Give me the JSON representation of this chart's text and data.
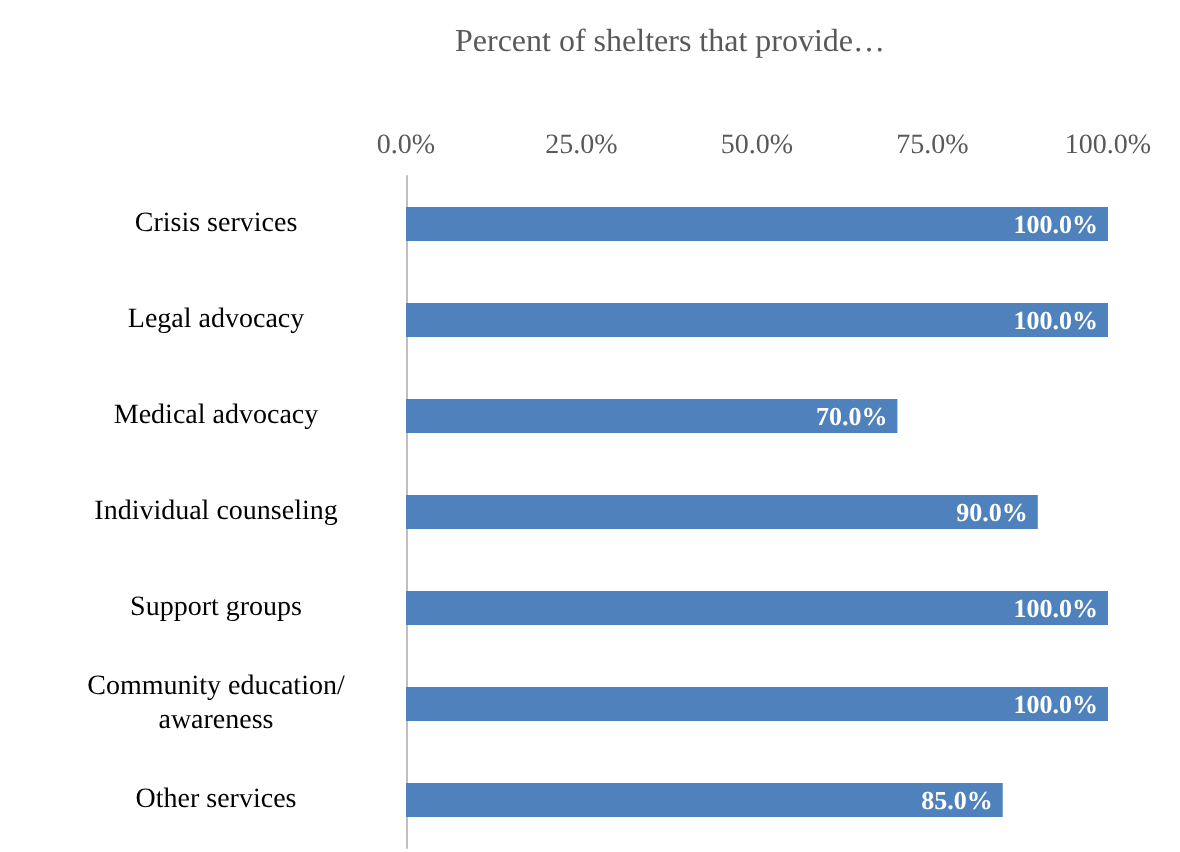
{
  "chart_data": {
    "type": "bar",
    "orientation": "horizontal",
    "title": "Percent of shelters that provide…",
    "categories": [
      "Crisis services",
      "Legal advocacy",
      "Medical advocacy",
      "Individual counseling",
      "Support groups",
      "Community education/awareness",
      "Other services"
    ],
    "values": [
      100,
      100,
      70,
      90,
      100,
      100,
      85
    ],
    "value_labels": [
      "100.0%",
      "100.0%",
      "70.0%",
      "90.0%",
      "100.0%",
      "100.0%",
      "85.0%"
    ],
    "color": "#4f81bd",
    "xlim": [
      0,
      100
    ],
    "xticks": [
      {
        "value": 0,
        "label": "0.0%"
      },
      {
        "value": 25,
        "label": "25.0%"
      },
      {
        "value": 50,
        "label": "50.0%"
      },
      {
        "value": 75,
        "label": "75.0%"
      },
      {
        "value": 100,
        "label": "100.0%"
      }
    ],
    "grid": false
  }
}
